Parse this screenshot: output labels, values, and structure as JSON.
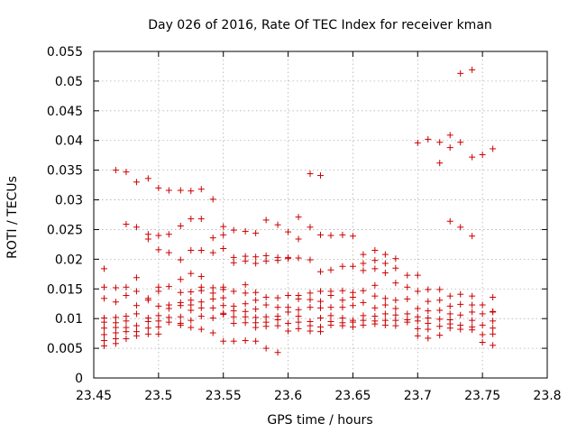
{
  "chart_data": {
    "type": "scatter",
    "title": "Day 026 of 2016, Rate Of TEC Index for receiver kman",
    "xlabel": "GPS time / hours",
    "ylabel": "ROTI / TECUs",
    "xlim": [
      23.45,
      23.8
    ],
    "ylim": [
      0,
      0.055
    ],
    "xticks": [
      23.45,
      23.5,
      23.55,
      23.6,
      23.65,
      23.7,
      23.75,
      23.8
    ],
    "xtick_labels": [
      "23.45",
      "23.5",
      "23.55",
      "23.6",
      "23.65",
      "23.7",
      "23.75",
      "23.8"
    ],
    "yticks": [
      0,
      0.005,
      0.01,
      0.015,
      0.02,
      0.025,
      0.03,
      0.035,
      0.04,
      0.045,
      0.05,
      0.055
    ],
    "ytick_labels": [
      "0",
      "0.005",
      "0.01",
      "0.015",
      "0.02",
      "0.025",
      "0.03",
      "0.035",
      "0.04",
      "0.045",
      "0.05",
      "0.055"
    ],
    "grid": true,
    "marker": "+",
    "color": "#cc0000",
    "x_times": [
      23.458,
      23.467,
      23.475,
      23.483,
      23.492,
      23.5,
      23.508,
      23.517,
      23.525,
      23.533,
      23.542,
      23.55,
      23.558,
      23.567,
      23.575,
      23.583,
      23.592,
      23.6,
      23.608,
      23.617,
      23.625,
      23.633,
      23.642,
      23.65,
      23.658,
      23.667,
      23.675,
      23.683,
      23.692,
      23.7,
      23.708,
      23.717,
      23.725,
      23.733,
      23.742,
      23.75,
      23.758
    ],
    "y_columns": [
      [
        0.0184,
        0.0153,
        0.0134,
        0.0101,
        0.0094,
        0.0084,
        0.0073,
        0.0063,
        0.0054
      ],
      [
        0.035,
        0.0152,
        0.0128,
        0.0102,
        0.0093,
        0.0085,
        0.0076,
        0.0066,
        0.0058
      ],
      [
        0.0347,
        0.0259,
        0.0153,
        0.0139,
        0.0104,
        0.0096,
        0.0085,
        0.0078,
        0.0066
      ],
      [
        0.033,
        0.0254,
        0.0169,
        0.0146,
        0.0122,
        0.0108,
        0.0088,
        0.0078,
        0.0071
      ],
      [
        0.0336,
        0.0242,
        0.0234,
        0.0134,
        0.0131,
        0.0101,
        0.0095,
        0.0084,
        0.0074
      ],
      [
        0.032,
        0.024,
        0.0216,
        0.0153,
        0.0146,
        0.0121,
        0.0105,
        0.0096,
        0.0086,
        0.0074
      ],
      [
        0.0316,
        0.0242,
        0.0211,
        0.0154,
        0.0123,
        0.0117,
        0.0102,
        0.0094
      ],
      [
        0.0316,
        0.0256,
        0.0199,
        0.0166,
        0.0144,
        0.0127,
        0.0122,
        0.0103,
        0.0092,
        0.0089
      ],
      [
        0.0315,
        0.0268,
        0.0215,
        0.0176,
        0.0145,
        0.0131,
        0.0123,
        0.0114,
        0.0097,
        0.0085
      ],
      [
        0.0318,
        0.0268,
        0.0215,
        0.0171,
        0.0153,
        0.0147,
        0.0128,
        0.0118,
        0.0104,
        0.0082
      ],
      [
        0.0301,
        0.0236,
        0.0211,
        0.0152,
        0.0143,
        0.0133,
        0.0118,
        0.0101,
        0.0076
      ],
      [
        0.0255,
        0.0241,
        0.0218,
        0.0153,
        0.0149,
        0.0135,
        0.0122,
        0.0109,
        0.0107,
        0.0062
      ],
      [
        0.0249,
        0.0203,
        0.0194,
        0.0146,
        0.0121,
        0.0113,
        0.0103,
        0.0092,
        0.0062
      ],
      [
        0.0247,
        0.0205,
        0.0197,
        0.0157,
        0.0143,
        0.0125,
        0.0112,
        0.0103,
        0.0093,
        0.0063
      ],
      [
        0.0244,
        0.0204,
        0.0193,
        0.0144,
        0.0131,
        0.0116,
        0.0102,
        0.0093,
        0.0085,
        0.0062
      ],
      [
        0.0266,
        0.0206,
        0.0197,
        0.0136,
        0.0123,
        0.0103,
        0.0094,
        0.0087,
        0.005
      ],
      [
        0.0258,
        0.0203,
        0.0198,
        0.0135,
        0.0119,
        0.0104,
        0.0098,
        0.0088,
        0.0043
      ],
      [
        0.0246,
        0.0203,
        0.0201,
        0.0139,
        0.0119,
        0.0111,
        0.0092,
        0.0079
      ],
      [
        0.0271,
        0.0234,
        0.0202,
        0.0139,
        0.0133,
        0.0115,
        0.0104,
        0.0094,
        0.0083
      ],
      [
        0.0344,
        0.0254,
        0.0199,
        0.0143,
        0.0132,
        0.0119,
        0.0095,
        0.0088,
        0.0079
      ],
      [
        0.0341,
        0.0241,
        0.0179,
        0.0146,
        0.0129,
        0.0118,
        0.0101,
        0.0086,
        0.0078
      ],
      [
        0.024,
        0.0182,
        0.0146,
        0.0139,
        0.0119,
        0.0105,
        0.0095,
        0.0089
      ],
      [
        0.0241,
        0.0188,
        0.0147,
        0.0131,
        0.0119,
        0.0101,
        0.0093,
        0.0088
      ],
      [
        0.0239,
        0.0188,
        0.0144,
        0.0136,
        0.0122,
        0.0097,
        0.0094,
        0.0086
      ],
      [
        0.0208,
        0.0193,
        0.0181,
        0.0147,
        0.0127,
        0.0105,
        0.0097,
        0.0089
      ],
      [
        0.0215,
        0.0198,
        0.0184,
        0.0156,
        0.0138,
        0.0118,
        0.0104,
        0.0096,
        0.0091
      ],
      [
        0.0208,
        0.0193,
        0.0177,
        0.0134,
        0.0123,
        0.0108,
        0.0097,
        0.0089
      ],
      [
        0.0201,
        0.0185,
        0.016,
        0.0131,
        0.0117,
        0.0106,
        0.0097,
        0.0088
      ],
      [
        0.0173,
        0.0153,
        0.0133,
        0.0108,
        0.0098,
        0.0094
      ],
      [
        0.0396,
        0.0173,
        0.0146,
        0.0117,
        0.0103,
        0.0096,
        0.0083,
        0.0071
      ],
      [
        0.0402,
        0.0149,
        0.0129,
        0.0113,
        0.0101,
        0.0092,
        0.0082,
        0.0067
      ],
      [
        0.0397,
        0.0362,
        0.0149,
        0.0131,
        0.0114,
        0.0099,
        0.0087,
        0.0072
      ],
      [
        0.0409,
        0.0388,
        0.0264,
        0.0138,
        0.0121,
        0.0108,
        0.0098,
        0.0091,
        0.0084
      ],
      [
        0.0513,
        0.0397,
        0.0254,
        0.0141,
        0.0124,
        0.0106,
        0.0089,
        0.0082
      ],
      [
        0.0519,
        0.0372,
        0.0239,
        0.0138,
        0.0123,
        0.0111,
        0.0097,
        0.0086,
        0.0081
      ],
      [
        0.0376,
        0.0123,
        0.0108,
        0.0089,
        0.0073,
        0.006
      ],
      [
        0.0386,
        0.0136,
        0.0112,
        0.0111,
        0.0096,
        0.0084,
        0.0074,
        0.0055
      ]
    ]
  }
}
